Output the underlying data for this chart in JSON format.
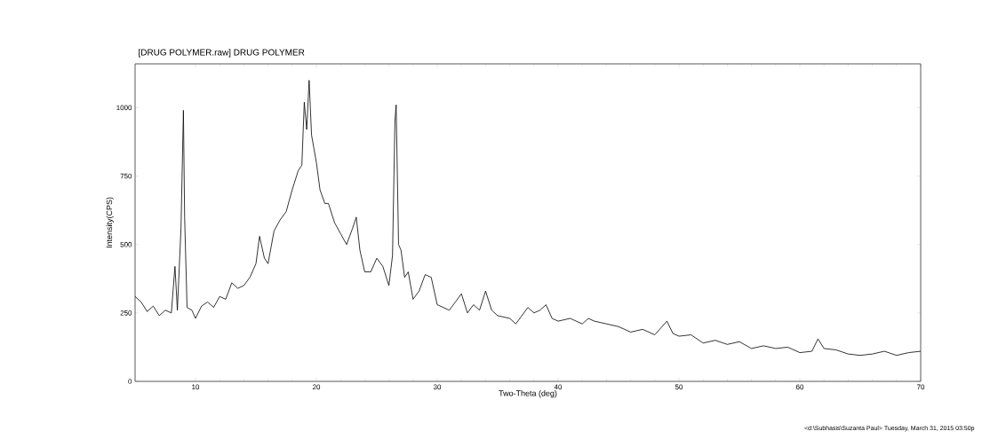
{
  "chart_data": {
    "type": "line",
    "title": "[DRUG POLYMER.raw] DRUG POLYMER",
    "xlabel": "Two-Theta (deg)",
    "ylabel": "Intensity(CPS)",
    "annotations": [
      "<d:\\Subhasis\\Suzanta Paul> Tuesday, March 31, 2015 03:50p"
    ],
    "xlim": [
      5,
      70
    ],
    "ylim": [
      0,
      1160
    ],
    "xticks": [
      10,
      20,
      30,
      40,
      50,
      60,
      70
    ],
    "yticks": [
      0,
      250,
      500,
      750,
      1000
    ],
    "marker": "none",
    "line_style": "solid",
    "series": [
      {
        "color": "#000000",
        "x": [
          5,
          5.5,
          6,
          6.5,
          7,
          7.5,
          8,
          8.3,
          8.5,
          8.8,
          9.0,
          9.1,
          9.3,
          9.7,
          10,
          10.5,
          11,
          11.5,
          12,
          12.5,
          13,
          13.5,
          14,
          14.5,
          15,
          15.3,
          15.7,
          16,
          16.5,
          17,
          17.5,
          18,
          18.5,
          18.8,
          19.0,
          19.2,
          19.4,
          19.6,
          19.8,
          20,
          20.3,
          20.7,
          21,
          21.5,
          22,
          22.5,
          23,
          23.3,
          23.6,
          24,
          24.5,
          25,
          25.5,
          26,
          26.3,
          26.5,
          26.6,
          26.8,
          27,
          27.3,
          27.6,
          28,
          28.5,
          29,
          29.5,
          30,
          31,
          31.5,
          32,
          32.5,
          33,
          33.5,
          34,
          34.5,
          35,
          36,
          36.5,
          37,
          37.5,
          38,
          38.5,
          39,
          39.5,
          40,
          41,
          42,
          42.5,
          43,
          44,
          45,
          46,
          47,
          48,
          49,
          49.5,
          50,
          51,
          52,
          53,
          54,
          55,
          56,
          57,
          58,
          59,
          60,
          61,
          61.5,
          62,
          63,
          64,
          65,
          66,
          67,
          68,
          69,
          70
        ],
        "values": [
          310,
          290,
          255,
          275,
          240,
          260,
          250,
          420,
          260,
          560,
          990,
          600,
          270,
          260,
          230,
          275,
          290,
          270,
          310,
          300,
          360,
          340,
          350,
          380,
          430,
          530,
          450,
          430,
          550,
          590,
          620,
          700,
          770,
          790,
          1020,
          920,
          1100,
          900,
          850,
          800,
          700,
          650,
          650,
          580,
          540,
          500,
          560,
          600,
          480,
          400,
          400,
          450,
          420,
          350,
          460,
          950,
          1010,
          500,
          480,
          380,
          400,
          300,
          330,
          390,
          380,
          280,
          260,
          290,
          320,
          250,
          280,
          260,
          330,
          260,
          240,
          230,
          210,
          240,
          270,
          250,
          260,
          280,
          230,
          220,
          230,
          210,
          230,
          220,
          210,
          200,
          180,
          190,
          170,
          220,
          175,
          165,
          170,
          140,
          150,
          135,
          145,
          120,
          130,
          120,
          125,
          105,
          110,
          155,
          120,
          115,
          100,
          95,
          100,
          110,
          95,
          105,
          110
        ]
      }
    ]
  }
}
